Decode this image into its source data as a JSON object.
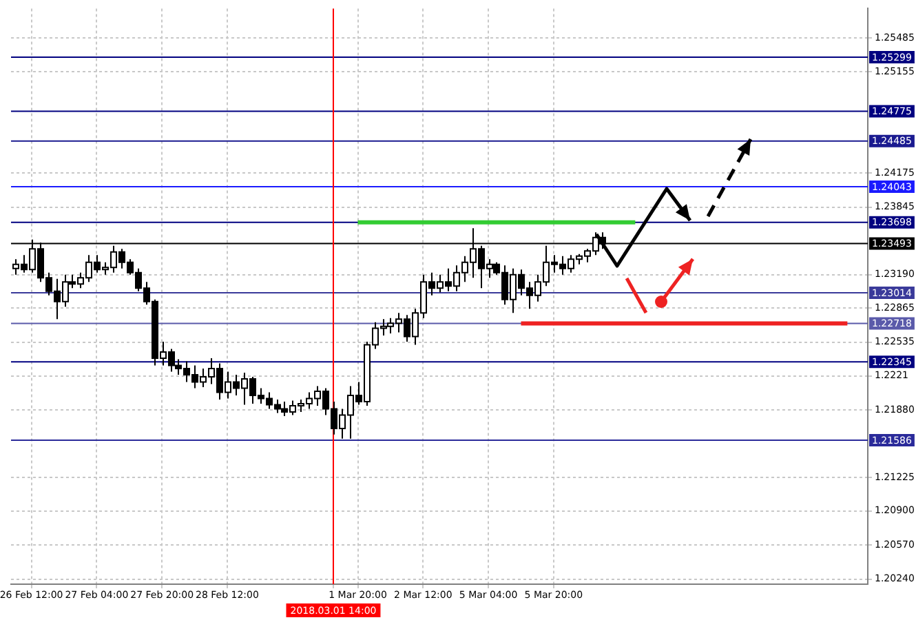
{
  "chart_data": {
    "type": "candlestick",
    "categories": [
      null,
      null,
      "26 Feb 12:00",
      null,
      null,
      null,
      null,
      null,
      null,
      null,
      "27 Feb 04:00",
      null,
      null,
      null,
      null,
      null,
      null,
      null,
      "27 Feb 20:00",
      null,
      null,
      null,
      null,
      null,
      null,
      null,
      "28 Feb 12:00",
      null,
      null,
      null,
      null,
      null,
      null,
      null,
      null,
      null,
      null,
      null,
      null,
      "2018.03.01 14:00",
      null,
      null,
      "1 Mar 20:00",
      null,
      null,
      null,
      null,
      null,
      null,
      null,
      "2 Mar 12:00",
      null,
      null,
      null,
      null,
      null,
      null,
      null,
      "5 Mar 04:00",
      null,
      null,
      null,
      null,
      null,
      null,
      null,
      "5 Mar 20:00",
      null,
      null,
      null,
      null,
      null,
      null,
      null,
      null,
      null,
      null,
      null,
      null,
      null,
      null,
      null,
      null,
      null,
      null,
      null,
      null,
      null,
      null,
      null,
      null,
      null,
      null,
      null,
      null,
      null,
      null,
      null,
      null,
      null,
      null,
      null,
      null,
      null,
      null
    ],
    "series": [
      {
        "type": "line",
        "color": "#33cc33",
        "values": [
          null,
          null,
          null,
          null,
          null,
          null,
          null,
          null,
          null,
          null,
          null,
          null,
          null,
          null,
          null,
          null,
          null,
          null,
          null,
          null,
          null,
          null,
          null,
          null,
          null,
          null,
          null,
          null,
          null,
          null,
          null,
          null,
          null,
          null,
          null,
          null,
          null,
          null,
          null,
          null,
          null,
          null,
          1.23698,
          1.23698,
          1.23698,
          1.23698,
          1.23698,
          1.23698,
          1.23698,
          1.23698,
          1.23698,
          1.23698,
          1.23698,
          1.23698,
          1.23698,
          1.23698,
          1.23698,
          1.23698,
          1.23698,
          1.23698,
          1.23698,
          1.23698,
          1.23698,
          1.23698,
          1.23698,
          1.23698,
          1.23698,
          1.23698,
          1.23698,
          1.23698,
          1.23698,
          1.23698,
          1.23698,
          1.23698,
          1.23698,
          1.23698,
          1.23698,
          null,
          null,
          null,
          null,
          null,
          null,
          null,
          null,
          null,
          null,
          null,
          null,
          null,
          null,
          null,
          null,
          null,
          null,
          null,
          null,
          null,
          null,
          null,
          null,
          null,
          null,
          null,
          null
        ]
      },
      {
        "type": "line",
        "color": "#ee2222",
        "values": [
          null,
          null,
          null,
          null,
          null,
          null,
          null,
          null,
          null,
          null,
          null,
          null,
          null,
          null,
          null,
          null,
          null,
          null,
          null,
          null,
          null,
          null,
          null,
          null,
          null,
          null,
          null,
          null,
          null,
          null,
          null,
          null,
          null,
          null,
          null,
          null,
          null,
          null,
          null,
          null,
          null,
          null,
          null,
          null,
          null,
          null,
          null,
          null,
          null,
          null,
          null,
          null,
          null,
          null,
          null,
          null,
          null,
          null,
          null,
          null,
          null,
          null,
          1.22718,
          1.22718,
          1.22718,
          1.22718,
          1.22718,
          1.22718,
          1.22718,
          1.22718,
          1.22718,
          1.22718,
          1.22718,
          1.22718,
          1.22718,
          1.22718,
          1.22718,
          1.22718,
          1.22718,
          1.22718,
          1.22718,
          1.22718,
          1.22718,
          1.22718,
          1.22718,
          1.22718,
          1.22718,
          1.22718,
          1.22718,
          1.22718,
          1.22718,
          1.22718,
          1.22718,
          1.22718,
          1.22718,
          1.22718,
          1.22718,
          1.22718,
          1.22718,
          1.22718,
          1.22718,
          1.22718,
          1.22718,
          null,
          null
        ]
      },
      {
        "type": "candlestick",
        "color": "#000000",
        "colors": [
          "#ffffff",
          "#000000",
          "#ffffff",
          "#000000",
          "#000000",
          "#000000",
          "#ffffff",
          "#000000",
          "#ffffff",
          "#ffffff",
          "#000000",
          "#ffffff",
          "#ffffff",
          "#000000",
          "#000000",
          "#000000",
          "#000000",
          "#000000",
          "#ffffff",
          "#000000",
          "#000000",
          "#000000",
          "#000000",
          "#ffffff",
          "#ffffff",
          "#000000",
          "#ffffff",
          "#000000",
          "#ffffff",
          "#000000",
          "#000000",
          "#000000",
          "#000000",
          "#000000",
          "#ffffff",
          "#ffffff",
          "#ffffff",
          "#ffffff",
          "#000000",
          "#000000",
          "#ffffff",
          "#ffffff",
          "#000000",
          "#ffffff",
          "#ffffff",
          "#ffffff",
          "#ffffff",
          "#ffffff",
          "#000000",
          "#ffffff",
          "#ffffff",
          "#000000",
          "#ffffff",
          "#000000",
          "#ffffff",
          "#ffffff",
          "#ffffff",
          "#000000",
          "#ffffff",
          "#000000",
          "#000000",
          "#ffffff",
          "#000000",
          "#000000",
          "#ffffff",
          "#ffffff",
          "#000000",
          "#000000",
          "#ffffff",
          "#ffffff",
          "#ffffff",
          "#ffffff",
          "#000000",
          null,
          null,
          null,
          null,
          null,
          null,
          null,
          null,
          null,
          null,
          null,
          null,
          null,
          null,
          null,
          null,
          null,
          null,
          null,
          null,
          null,
          null,
          null,
          null,
          null,
          null,
          null,
          null,
          null,
          null,
          null,
          null
        ],
        "ohlc": [
          [
            1.2325,
            1.2334,
            1.2319,
            1.2329
          ],
          [
            1.2329,
            1.2338,
            1.2321,
            1.2324
          ],
          [
            1.2324,
            1.2353,
            1.2321,
            1.2344
          ],
          [
            1.2344,
            1.235,
            1.2312,
            1.2316
          ],
          [
            1.2316,
            1.2321,
            1.2299,
            1.2303
          ],
          [
            1.2303,
            1.2315,
            1.2276,
            1.2293
          ],
          [
            1.2293,
            1.2319,
            1.2288,
            1.2312
          ],
          [
            1.2312,
            1.2319,
            1.2306,
            1.231
          ],
          [
            1.231,
            1.2321,
            1.2306,
            1.2316
          ],
          [
            1.2316,
            1.2338,
            1.2312,
            1.2331
          ],
          [
            1.2331,
            1.2338,
            1.2321,
            1.2324
          ],
          [
            1.2324,
            1.2331,
            1.2319,
            1.2326
          ],
          [
            1.2326,
            1.2347,
            1.2321,
            1.2341
          ],
          [
            1.2341,
            1.2344,
            1.2325,
            1.2331
          ],
          [
            1.2331,
            1.2334,
            1.2319,
            1.2321
          ],
          [
            1.2321,
            1.2325,
            1.2303,
            1.2306
          ],
          [
            1.2306,
            1.2312,
            1.229,
            1.2293
          ],
          [
            1.2293,
            1.2295,
            1.2231,
            1.2238
          ],
          [
            1.2238,
            1.2254,
            1.2231,
            1.2244
          ],
          [
            1.2244,
            1.2247,
            1.2225,
            1.2231
          ],
          [
            1.2231,
            1.2237,
            1.2222,
            1.2228
          ],
          [
            1.2228,
            1.2235,
            1.2215,
            1.2222
          ],
          [
            1.2222,
            1.2231,
            1.2209,
            1.2215
          ],
          [
            1.2215,
            1.2228,
            1.221,
            1.222
          ],
          [
            1.222,
            1.2238,
            1.2213,
            1.2228
          ],
          [
            1.2228,
            1.2233,
            1.2198,
            1.2205
          ],
          [
            1.2205,
            1.2225,
            1.2199,
            1.2215
          ],
          [
            1.2215,
            1.2222,
            1.2202,
            1.2209
          ],
          [
            1.2209,
            1.2224,
            1.2193,
            1.2218
          ],
          [
            1.2218,
            1.222,
            1.2194,
            1.2202
          ],
          [
            1.2202,
            1.2209,
            1.2194,
            1.2199
          ],
          [
            1.2199,
            1.2205,
            1.2189,
            1.2193
          ],
          [
            1.2193,
            1.2198,
            1.2185,
            1.2189
          ],
          [
            1.2189,
            1.2196,
            1.2182,
            1.2186
          ],
          [
            1.2186,
            1.2197,
            1.2183,
            1.2192
          ],
          [
            1.2192,
            1.2198,
            1.2186,
            1.2194
          ],
          [
            1.2194,
            1.2205,
            1.2189,
            1.2199
          ],
          [
            1.2199,
            1.2211,
            1.2192,
            1.2206
          ],
          [
            1.2206,
            1.2209,
            1.2183,
            1.2189
          ],
          [
            1.2189,
            1.2196,
            1.2164,
            1.217
          ],
          [
            1.217,
            1.2189,
            1.216,
            1.2183
          ],
          [
            1.2183,
            1.2211,
            1.216,
            1.2202
          ],
          [
            1.2202,
            1.2215,
            1.2193,
            1.2196
          ],
          [
            1.2196,
            1.2254,
            1.2192,
            1.2251
          ],
          [
            1.2251,
            1.2273,
            1.2247,
            1.2267
          ],
          [
            1.2267,
            1.2276,
            1.226,
            1.2269
          ],
          [
            1.2269,
            1.2277,
            1.2262,
            1.2272
          ],
          [
            1.2272,
            1.2282,
            1.2263,
            1.2276
          ],
          [
            1.2276,
            1.228,
            1.2254,
            1.2259
          ],
          [
            1.2259,
            1.2286,
            1.2251,
            1.2282
          ],
          [
            1.2282,
            1.2319,
            1.2277,
            1.2312
          ],
          [
            1.2312,
            1.2321,
            1.2299,
            1.2306
          ],
          [
            1.2306,
            1.2319,
            1.2302,
            1.2312
          ],
          [
            1.2312,
            1.2325,
            1.2303,
            1.2308
          ],
          [
            1.2308,
            1.2328,
            1.2303,
            1.2321
          ],
          [
            1.2321,
            1.2337,
            1.2312,
            1.2331
          ],
          [
            1.2331,
            1.2364,
            1.2316,
            1.2344
          ],
          [
            1.2344,
            1.2347,
            1.2306,
            1.2325
          ],
          [
            1.2325,
            1.2334,
            1.2316,
            1.2329
          ],
          [
            1.2329,
            1.2331,
            1.2319,
            1.2321
          ],
          [
            1.2321,
            1.2328,
            1.229,
            1.2295
          ],
          [
            1.2295,
            1.2325,
            1.2282,
            1.2319
          ],
          [
            1.2319,
            1.2324,
            1.2299,
            1.2306
          ],
          [
            1.2306,
            1.2312,
            1.2286,
            1.2299
          ],
          [
            1.2299,
            1.2319,
            1.2293,
            1.2312
          ],
          [
            1.2312,
            1.2347,
            1.2308,
            1.2331
          ],
          [
            1.2331,
            1.2338,
            1.2321,
            1.2329
          ],
          [
            1.2329,
            1.2337,
            1.2319,
            1.2325
          ],
          [
            1.2325,
            1.2338,
            1.2321,
            1.2334
          ],
          [
            1.2334,
            1.2339,
            1.2329,
            1.2337
          ],
          [
            1.2337,
            1.2344,
            1.2331,
            1.2342
          ],
          [
            1.2342,
            1.236,
            1.2338,
            1.2355
          ],
          [
            1.2355,
            1.236,
            1.2344,
            1.2349
          ],
          null,
          null,
          null,
          null,
          null,
          null,
          null,
          null,
          null,
          null,
          null,
          null,
          null,
          null,
          null,
          null,
          null,
          null,
          null,
          null,
          null,
          null,
          null,
          null,
          null,
          null,
          null,
          null,
          null,
          null,
          null,
          null
        ]
      }
    ],
    "ylim": [
      1.2019,
      1.2577
    ],
    "yticks": [
      1.25485,
      1.25155,
      1.24175,
      1.23845,
      {
        "value": 1.2319,
        "label": "1.23190"
      },
      1.22865,
      1.22535,
      1.2221,
      {
        "value": 1.2188,
        "label": "1.21880"
      },
      1.21225,
      {
        "value": 1.209,
        "label": "1.20900"
      },
      {
        "value": 1.2057,
        "label": "1.20570"
      },
      {
        "value": 1.2024,
        "label": "1.20240"
      }
    ],
    "ref_lines": [
      {
        "axis": "y",
        "value": 1.25299,
        "label": "1.25299",
        "color": "#000080"
      },
      {
        "axis": "y",
        "value": 1.24775,
        "label": "1.24775",
        "color": "#000080"
      },
      {
        "axis": "y",
        "value": 1.24485,
        "label": "1.24485",
        "color": "#1a1a90"
      },
      {
        "axis": "y",
        "value": 1.24043,
        "label": "1.24043",
        "color": "#1a1aff"
      },
      {
        "axis": "y",
        "value": 1.23698,
        "label": "1.23698",
        "color": "#000080"
      },
      {
        "axis": "y",
        "value": 1.23493,
        "label": "1.23493",
        "color": "#000000"
      },
      {
        "axis": "y",
        "value": 1.23014,
        "label": "1.23014",
        "color": "#3a3a9a"
      },
      {
        "axis": "y",
        "value": 1.22718,
        "label": "1.22718",
        "color": "#5a5aaa"
      },
      {
        "axis": "y",
        "value": 1.22345,
        "label": "1.22345",
        "color": "#000080"
      },
      {
        "axis": "y",
        "value": 1.21586,
        "label": "1.21586",
        "color": "#2a2a9a"
      },
      {
        "axis": "x",
        "value": "2018.03.01 14:00",
        "color": "#ff0000"
      }
    ],
    "grid": true
  }
}
